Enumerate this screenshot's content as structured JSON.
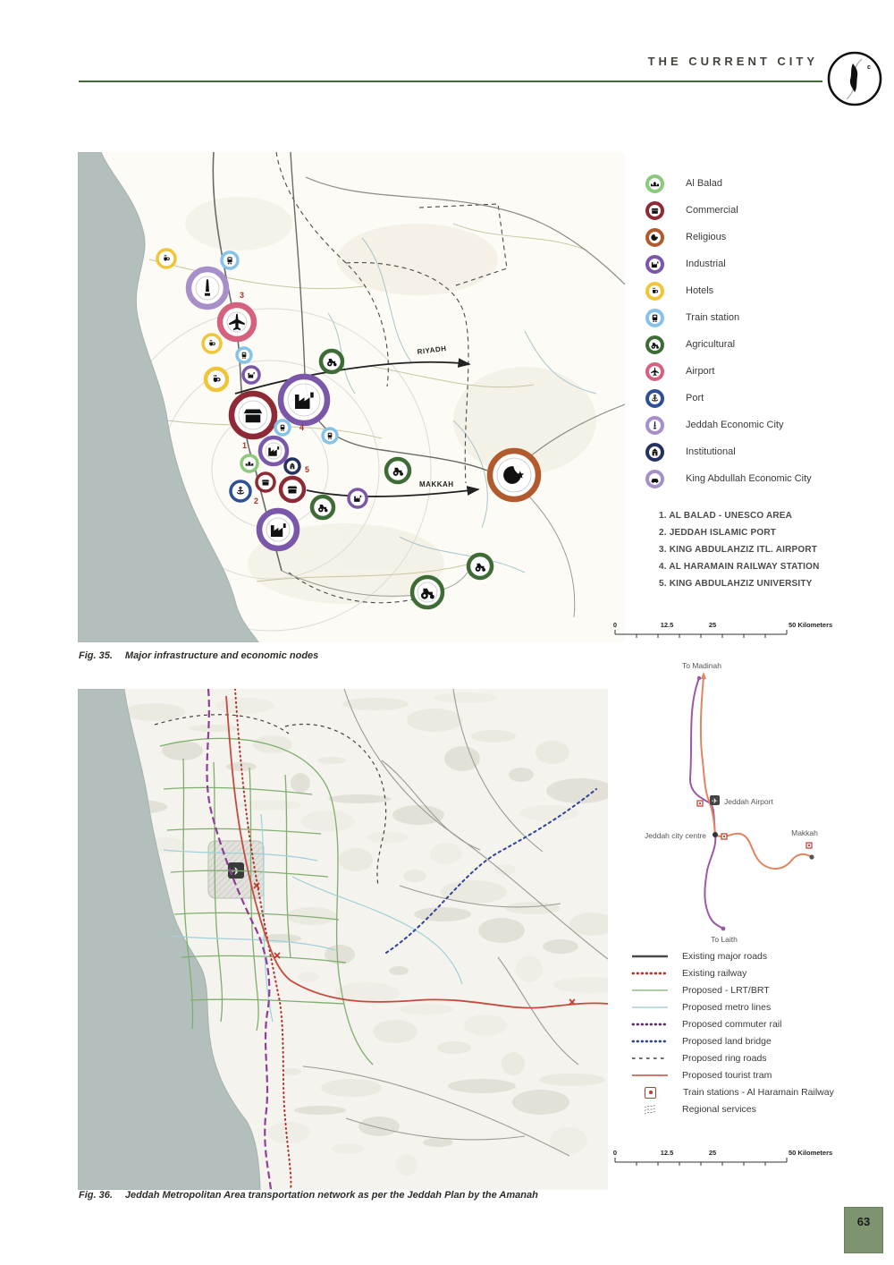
{
  "header": {
    "title": "THE CURRENT CITY",
    "logo_letter": "c"
  },
  "fig35": {
    "map_labels": {
      "riyadh": "RIYADH",
      "makkah": "MAKKAH"
    },
    "legend": [
      {
        "label": "Al Balad",
        "color": "#8cc87e",
        "icon": "al-balad"
      },
      {
        "label": "Commercial",
        "color": "#8e2a35",
        "icon": "commercial"
      },
      {
        "label": "Religious",
        "color": "#b05a2e",
        "icon": "religious"
      },
      {
        "label": "Industrial",
        "color": "#7a57a8",
        "icon": "industrial"
      },
      {
        "label": "Hotels",
        "color": "#f0c53a",
        "icon": "hotels"
      },
      {
        "label": "Train station",
        "color": "#85c3e8",
        "icon": "train-station"
      },
      {
        "label": "Agricultural",
        "color": "#3e6b36",
        "icon": "agricultural"
      },
      {
        "label": "Airport",
        "color": "#d6617f",
        "icon": "airport"
      },
      {
        "label": "Port",
        "color": "#2f4f96",
        "icon": "port"
      },
      {
        "label": "Jeddah Economic City",
        "color": "#a78fca",
        "icon": "jeddah-economic-city"
      },
      {
        "label": "Institutional",
        "color": "#243260",
        "icon": "institutional"
      },
      {
        "label": "King Abdullah Economic City",
        "color": "#a78fca",
        "icon": "king-abdullah-economic-city"
      }
    ],
    "notes": [
      "1. AL BALAD - UNESCO AREA",
      "2. JEDDAH ISLAMIC PORT",
      "3. KING ABDULAHZIZ ITL. AIRPORT",
      "4. AL HARAMAIN RAILWAY STATION",
      "5. KING ABDULAHZIZ UNIVERSITY"
    ],
    "scale": {
      "t0": "0",
      "t1": "12.5",
      "t2": "25",
      "t3": "50 Kilometers"
    },
    "caption_label": "Fig. 35.",
    "caption_text": "Major infrastructure and economic nodes"
  },
  "fig36": {
    "schematic": {
      "to_madinah": "To Madinah",
      "jeddah_airport": "Jeddah Airport",
      "jeddah_city_centre": "Jeddah city centre",
      "makkah": "Makkah",
      "to_laith": "To Laith"
    },
    "legend": [
      {
        "label": "Existing major roads",
        "color": "#4a4a4a",
        "style": "solid-thick"
      },
      {
        "label": "Existing railway",
        "color": "#b03028",
        "style": "dotted"
      },
      {
        "label": "Proposed - LRT/BRT",
        "color": "#93b888",
        "style": "solid-thin"
      },
      {
        "label": "Proposed metro lines",
        "color": "#a8d3da",
        "style": "solid-thin"
      },
      {
        "label": "Proposed commuter rail",
        "color": "#5c2a66",
        "style": "dotted"
      },
      {
        "label": "Proposed land bridge",
        "color": "#2f4398",
        "style": "dotted"
      },
      {
        "label": "Proposed ring roads",
        "color": "#555555",
        "style": "dashed"
      },
      {
        "label": "Proposed tourist tram",
        "color": "#c64a3e",
        "style": "solid-thin"
      },
      {
        "label": "Train stations - Al Haramain Railway",
        "color": "#c0392b",
        "style": "station-icon"
      },
      {
        "label": "Regional services",
        "color": "#8a8a8a",
        "style": "hatch-icon"
      }
    ],
    "scale": {
      "t0": "0",
      "t1": "12.5",
      "t2": "25",
      "t3": "50 Kilometers"
    },
    "caption_label": "Fig. 36.",
    "caption_text": "Jeddah Metropolitan Area transportation network as per the Jeddah Plan by the Amanah"
  },
  "footer": {
    "page_number": "63"
  }
}
